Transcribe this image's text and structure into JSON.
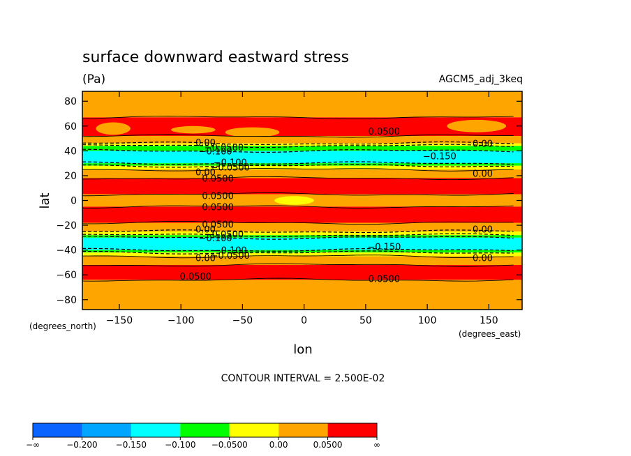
{
  "chart_data": {
    "type": "heatmap",
    "title": "surface downward eastward stress",
    "units": "(Pa)",
    "dataset": "AGCM5_adj_3keq",
    "xlabel": "lon",
    "ylabel": "lat",
    "x_units": "(degrees_east)",
    "y_units": "(degrees_north)",
    "xlim": [
      -180,
      177
    ],
    "ylim": [
      -88,
      88
    ],
    "x_ticks": [
      "−150",
      "−100",
      "−50",
      "0",
      "50",
      "100",
      "150"
    ],
    "x_tick_values": [
      -150,
      -100,
      -50,
      0,
      50,
      100,
      150
    ],
    "y_ticks": [
      "80",
      "60",
      "40",
      "20",
      "0",
      "−20",
      "−40",
      "−60",
      "−80"
    ],
    "y_tick_values": [
      80,
      60,
      40,
      20,
      0,
      -20,
      -40,
      -60,
      -80
    ],
    "contour_interval_text": "CONTOUR INTERVAL = 2.500E-02",
    "zonal_bands": [
      {
        "lat": [
          67,
          88
        ],
        "value_range": "0.00 to 0.0500"
      },
      {
        "lat": [
          52,
          67
        ],
        "value_range": "0.0500 to ∞",
        "note": "patches"
      },
      {
        "lat": [
          46,
          52
        ],
        "value_range": "0.00 to 0.0500"
      },
      {
        "lat": [
          44,
          46
        ],
        "value_range": "−0.0500 to 0.00"
      },
      {
        "lat": [
          40,
          44
        ],
        "value_range": "−0.100 to −0.0500"
      },
      {
        "lat": [
          30,
          40
        ],
        "value_range": "−0.150 to −0.100"
      },
      {
        "lat": [
          28,
          30
        ],
        "value_range": "−0.100 to −0.0500"
      },
      {
        "lat": [
          25,
          28
        ],
        "value_range": "−0.0500 to 0.00"
      },
      {
        "lat": [
          18,
          25
        ],
        "value_range": "0.00 to 0.0500"
      },
      {
        "lat": [
          5,
          18
        ],
        "value_range": "0.0500 to ∞"
      },
      {
        "lat": [
          -5,
          5
        ],
        "value_range": "0.00 to 0.0500"
      },
      {
        "lat": [
          -18,
          -5
        ],
        "value_range": "0.0500 to ∞"
      },
      {
        "lat": [
          -25,
          -18
        ],
        "value_range": "0.00 to 0.0500"
      },
      {
        "lat": [
          -28,
          -25
        ],
        "value_range": "−0.0500 to 0.00"
      },
      {
        "lat": [
          -30,
          -28
        ],
        "value_range": "−0.100 to −0.0500"
      },
      {
        "lat": [
          -40,
          -30
        ],
        "value_range": "−0.150 to −0.100"
      },
      {
        "lat": [
          -42,
          -40
        ],
        "value_range": "−0.100 to −0.0500"
      },
      {
        "lat": [
          -45,
          -42
        ],
        "value_range": "−0.0500 to 0.00"
      },
      {
        "lat": [
          -52,
          -45
        ],
        "value_range": "0.00 to 0.0500"
      },
      {
        "lat": [
          -64,
          -52
        ],
        "value_range": "0.0500 to ∞"
      },
      {
        "lat": [
          -88,
          -64
        ],
        "value_range": "0.00 to 0.0500"
      }
    ],
    "contour_labels": [
      {
        "text": "0.00",
        "lon": -80,
        "lat": 47
      },
      {
        "text": "−0.0500",
        "lon": -65,
        "lat": 43
      },
      {
        "text": "−0.100",
        "lon": -72,
        "lat": 40
      },
      {
        "text": "−0.100",
        "lon": -60,
        "lat": 31
      },
      {
        "text": "−0.0500",
        "lon": -60,
        "lat": 27
      },
      {
        "text": "0.00",
        "lon": -80,
        "lat": 23
      },
      {
        "text": "0.0500",
        "lon": -70,
        "lat": 18
      },
      {
        "text": "0.0500",
        "lon": -70,
        "lat": 4
      },
      {
        "text": "0.0500",
        "lon": -70,
        "lat": -5
      },
      {
        "text": "0.0500",
        "lon": -70,
        "lat": -19
      },
      {
        "text": "0.00",
        "lon": -80,
        "lat": -23
      },
      {
        "text": "−0.0500",
        "lon": -65,
        "lat": -27
      },
      {
        "text": "−0.100",
        "lon": -72,
        "lat": -30
      },
      {
        "text": "−0.100",
        "lon": -60,
        "lat": -40
      },
      {
        "text": "−0.0500",
        "lon": -60,
        "lat": -44
      },
      {
        "text": "0.00",
        "lon": -80,
        "lat": -46
      },
      {
        "text": "0.0500",
        "lon": -88,
        "lat": -61
      },
      {
        "text": "0.0500",
        "lon": 65,
        "lat": 56
      },
      {
        "text": "−0.150",
        "lon": 110,
        "lat": 36
      },
      {
        "text": "0.00",
        "lon": 145,
        "lat": 46
      },
      {
        "text": "0.00",
        "lon": 145,
        "lat": 22
      },
      {
        "text": "0.00",
        "lon": 145,
        "lat": -23
      },
      {
        "text": "−0.150",
        "lon": 65,
        "lat": -37
      },
      {
        "text": "0.00",
        "lon": 145,
        "lat": -46
      },
      {
        "text": "0.0500",
        "lon": 65,
        "lat": -63
      }
    ],
    "colorbar": {
      "colors": [
        "#0a64ff",
        "#00a5ff",
        "#00ffff",
        "#00ff00",
        "#ffff00",
        "#ffa500",
        "#ff0000"
      ],
      "labels": [
        "−∞",
        "−0.200",
        "−0.150",
        "−0.100",
        "−0.0500",
        "0.00",
        "0.0500",
        "∞"
      ]
    }
  }
}
